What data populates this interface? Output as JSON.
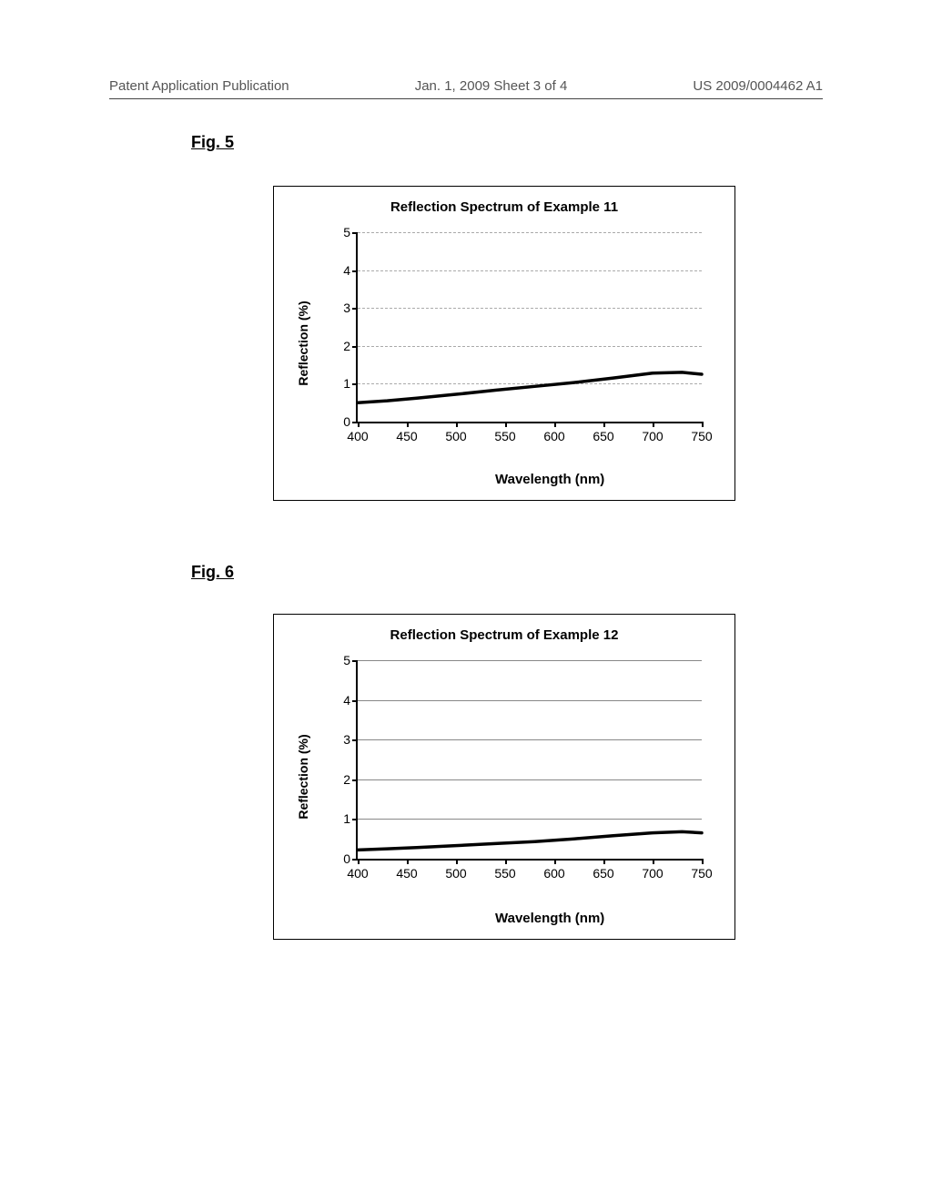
{
  "header": {
    "left": "Patent Application Publication",
    "center": "Jan. 1, 2009  Sheet 3 of 4",
    "right": "US 2009/0004462 A1"
  },
  "figures": {
    "fig5": {
      "label": "Fig.  5",
      "title": "Reflection Spectrum of Example 11",
      "xlabel": "Wavelength (nm)",
      "ylabel": "Reflection (%)",
      "type": "line",
      "xlim": [
        400,
        750
      ],
      "ylim": [
        0,
        5
      ],
      "xticks": [
        400,
        450,
        500,
        550,
        600,
        650,
        700,
        750
      ],
      "yticks": [
        0,
        1,
        2,
        3,
        4,
        5
      ],
      "line_color": "#000000",
      "line_width": 3.5,
      "grid_style": "fuzzy",
      "data": {
        "x": [
          400,
          430,
          460,
          500,
          540,
          580,
          620,
          660,
          700,
          730,
          750
        ],
        "y": [
          0.5,
          0.55,
          0.62,
          0.72,
          0.83,
          0.93,
          1.03,
          1.15,
          1.28,
          1.3,
          1.25
        ]
      }
    },
    "fig6": {
      "label": "Fig.  6",
      "title": "Reflection Spectrum of Example 12",
      "xlabel": "Wavelength (nm)",
      "ylabel": "Reflection (%)",
      "type": "line",
      "xlim": [
        400,
        750
      ],
      "ylim": [
        0,
        5
      ],
      "xticks": [
        400,
        450,
        500,
        550,
        600,
        650,
        700,
        750
      ],
      "yticks": [
        0,
        1,
        2,
        3,
        4,
        5
      ],
      "line_color": "#000000",
      "line_width": 3.5,
      "grid_style": "solid",
      "data": {
        "x": [
          400,
          430,
          460,
          500,
          540,
          580,
          620,
          660,
          700,
          730,
          750
        ],
        "y": [
          0.22,
          0.25,
          0.28,
          0.33,
          0.38,
          0.43,
          0.5,
          0.58,
          0.65,
          0.68,
          0.65
        ]
      }
    }
  }
}
